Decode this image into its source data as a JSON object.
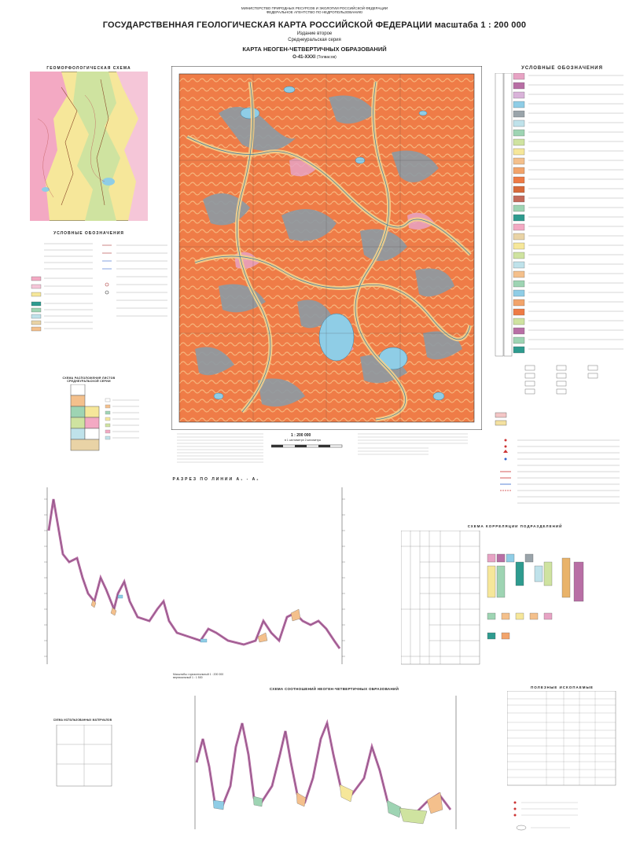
{
  "header": {
    "ministry_lines": [
      "МИНИСТЕРСТВО ПРИРОДНЫХ РЕСУРСОВ И ЭКОЛОГИИ РОССИЙСКОЙ ФЕДЕРАЦИИ",
      "ФЕДЕРАЛЬНОЕ АГЕНТСТВО ПО НЕДРОПОЛЬЗОВАНИЮ"
    ],
    "title": "ГОСУДАРСТВЕННАЯ ГЕОЛОГИЧЕСКАЯ КАРТА РОССИЙСКОЙ ФЕДЕРАЦИИ масштаба 1 : 200 000",
    "edition": "Издание второе",
    "series": "Среднеуральская серия",
    "map_name": "КАРТА НЕОГЕН-ЧЕТВЕРТИЧНЫХ ОБРАЗОВАНИЙ",
    "sheet": "O-41-XXXI",
    "sheet_name": "(Толвасов)"
  },
  "geomorph": {
    "title": "ГЕОМОРФОЛОГИЧЕСКАЯ СХЕМА",
    "legend_title": "УСЛОВНЫЕ ОБОЗНАЧЕНИЯ"
  },
  "legend": {
    "title": "УСЛОВНЫЕ ОБОЗНАЧЕНИЯ",
    "colors": {
      "peat": "#e7a3c4",
      "alluvium": "#f4c08c",
      "lake": "#8fcde6",
      "glacial": "#f29a6b",
      "bog": "#9aa4aa",
      "moraine": "#ee7b45",
      "neogene": "#b86fa5",
      "water": "#a9d9ec"
    }
  },
  "scale": {
    "ratio": "1 : 200 000",
    "bar": "в 1 сантиметре 2 километра"
  },
  "section": {
    "title": "РАЗРЕЗ ПО ЛИНИИ  А₁ - А₂",
    "scale_note": "Масштабы: горизонтальный 1 : 200 000\nвертикальный 1 : 1 500"
  },
  "correlation": {
    "title": "СХЕМА КОРРЕЛЯЦИИ ПОДРАЗДЕЛЕНИЙ"
  },
  "relations": {
    "title": "СХЕМА СООТНОШЕНИЙ НЕОГЕН-ЧЕТВЕРТИЧНЫХ ОБРАЗОВАНИЙ"
  },
  "minerals": {
    "title": "ПОЛЕЗНЫЕ ИСКОПАЕМЫЕ"
  },
  "sheets_scheme": {
    "title": "СХЕМА РАСПОЛОЖЕНИЯ ЛИСТОВ СРЕДНЕУРАЛЬСКОЙ СЕРИИ"
  },
  "study_scheme": {
    "title": "СХЕМА ИСПОЛЬЗОВАННЫХ МАТЕРИАЛОВ"
  }
}
